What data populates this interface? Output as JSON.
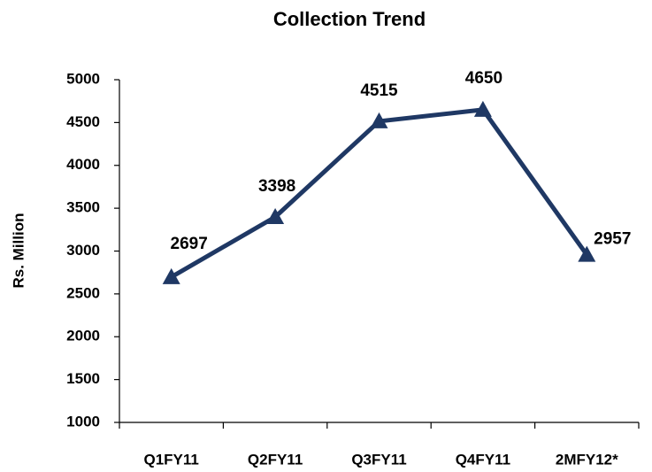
{
  "chart_data": {
    "type": "line",
    "title": "Collection Trend",
    "y_label": "Rs. Million",
    "categories": [
      "Q1FY11",
      "Q2FY11",
      "Q3FY11",
      "Q4FY11",
      "2MFY12*"
    ],
    "series": [
      {
        "name": "Collection",
        "color": "#1f3864",
        "values": [
          2697,
          3398,
          4515,
          4650,
          2957
        ]
      }
    ],
    "ylim": [
      1000,
      5000
    ],
    "yticks": [
      1000,
      1500,
      2000,
      2500,
      3000,
      3500,
      4000,
      4500,
      5000
    ],
    "grid": false,
    "marker": "triangle"
  }
}
